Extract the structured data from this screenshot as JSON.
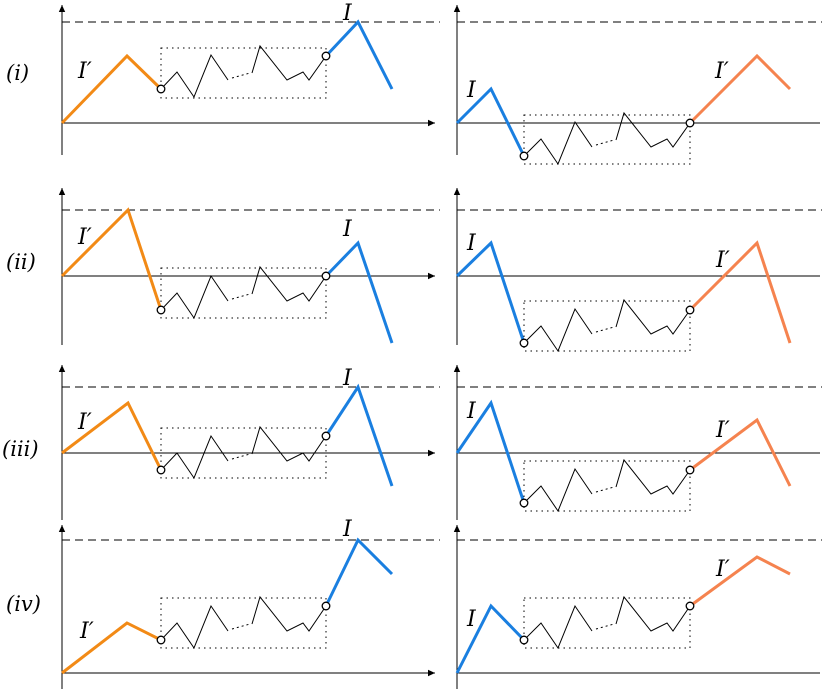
{
  "colors": {
    "blue": "#1a7fe0",
    "orange_left": "#f28a16",
    "orange_right": "#f5834f",
    "black": "#000000"
  },
  "labels": {
    "interval": "I",
    "interval_prime": "I′"
  },
  "rows": [
    {
      "id": "i",
      "label": "(i)"
    },
    {
      "id": "ii",
      "label": "(ii)"
    },
    {
      "id": "iii",
      "label": "(iii)"
    },
    {
      "id": "iv",
      "label": "(iv)"
    }
  ]
}
